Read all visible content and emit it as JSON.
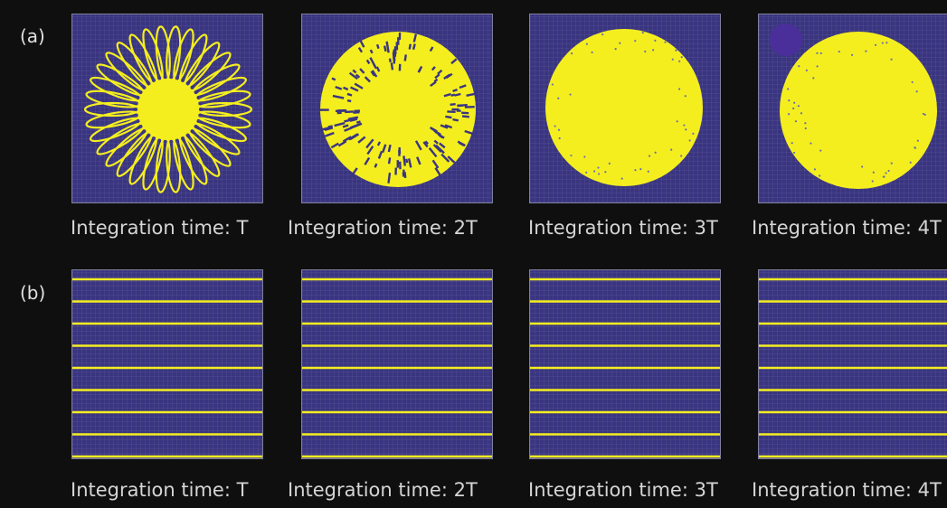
{
  "row_a_label": "(a)",
  "row_b_label": "(b)",
  "row_a_captions": [
    "Integration time: T",
    "Integration time: 2T",
    "Integration time: 3T",
    "Integration time: 4T"
  ],
  "row_b_captions": [
    "Integration time: T",
    "Integration time: 2T",
    "Integration time: 3T",
    "Integration time: 4T"
  ],
  "colors": {
    "background": "#0f0f0f",
    "field": "#3a3580",
    "pattern": "#f4ee1f"
  }
}
